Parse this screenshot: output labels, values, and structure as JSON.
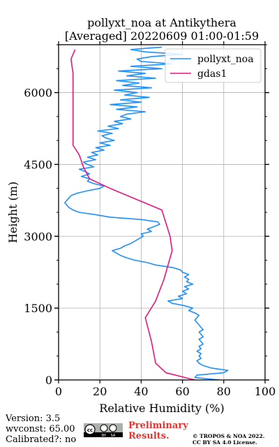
{
  "chart_data": {
    "type": "line",
    "title": [
      "pollyxt_noa at Antikythera",
      "[Averaged] 20220609 01:00-01:59"
    ],
    "xlabel": "Relative Humidity (%)",
    "ylabel": "Height (m)",
    "xlim": [
      0,
      100
    ],
    "ylim": [
      0,
      7000
    ],
    "xticks": [
      0,
      20,
      40,
      60,
      80,
      100
    ],
    "yticks": [
      0,
      1500,
      3000,
      4500,
      6000
    ],
    "grid": true,
    "legend_position": "top-right",
    "series": [
      {
        "name": "pollyxt_noa",
        "color": "#1e90ff",
        "points": [
          [
            78,
            0
          ],
          [
            66,
            50
          ],
          [
            67,
            100
          ],
          [
            80,
            150
          ],
          [
            82,
            200
          ],
          [
            74,
            250
          ],
          [
            70,
            300
          ],
          [
            68,
            350
          ],
          [
            67,
            400
          ],
          [
            69,
            450
          ],
          [
            68,
            500
          ],
          [
            69,
            550
          ],
          [
            67,
            600
          ],
          [
            69,
            650
          ],
          [
            68,
            700
          ],
          [
            70,
            750
          ],
          [
            69,
            800
          ],
          [
            68,
            850
          ],
          [
            70,
            900
          ],
          [
            69,
            950
          ],
          [
            68,
            1000
          ],
          [
            70,
            1050
          ],
          [
            69,
            1100
          ],
          [
            68,
            1150
          ],
          [
            67,
            1200
          ],
          [
            66,
            1250
          ],
          [
            67,
            1300
          ],
          [
            68,
            1350
          ],
          [
            66,
            1400
          ],
          [
            63,
            1450
          ],
          [
            65,
            1500
          ],
          [
            61,
            1550
          ],
          [
            55,
            1600
          ],
          [
            53,
            1650
          ],
          [
            60,
            1700
          ],
          [
            58,
            1750
          ],
          [
            62,
            1800
          ],
          [
            60,
            1850
          ],
          [
            63,
            1900
          ],
          [
            61,
            1950
          ],
          [
            65,
            2000
          ],
          [
            62,
            2050
          ],
          [
            63,
            2100
          ],
          [
            61,
            2150
          ],
          [
            63,
            2200
          ],
          [
            60,
            2250
          ],
          [
            59,
            2300
          ],
          [
            55,
            2350
          ],
          [
            47,
            2400
          ],
          [
            43,
            2450
          ],
          [
            37,
            2500
          ],
          [
            33,
            2550
          ],
          [
            30,
            2600
          ],
          [
            28,
            2650
          ],
          [
            26,
            2700
          ],
          [
            30,
            2750
          ],
          [
            32,
            2800
          ],
          [
            35,
            2850
          ],
          [
            37,
            2900
          ],
          [
            39,
            2950
          ],
          [
            41,
            3000
          ],
          [
            40,
            3050
          ],
          [
            45,
            3100
          ],
          [
            43,
            3150
          ],
          [
            46,
            3200
          ],
          [
            49,
            3250
          ],
          [
            48,
            3300
          ],
          [
            40,
            3350
          ],
          [
            25,
            3400
          ],
          [
            18,
            3450
          ],
          [
            10,
            3500
          ],
          [
            7,
            3550
          ],
          [
            5,
            3600
          ],
          [
            4,
            3650
          ],
          [
            3,
            3700
          ],
          [
            4,
            3750
          ],
          [
            5,
            3800
          ],
          [
            6,
            3850
          ],
          [
            9,
            3900
          ],
          [
            14,
            3950
          ],
          [
            20,
            4000
          ],
          [
            22,
            4050
          ],
          [
            17,
            4100
          ],
          [
            14,
            4150
          ],
          [
            15,
            4200
          ],
          [
            11,
            4250
          ],
          [
            15,
            4300
          ],
          [
            13,
            4350
          ],
          [
            10,
            4400
          ],
          [
            17,
            4450
          ],
          [
            14,
            4500
          ],
          [
            12,
            4550
          ],
          [
            18,
            4600
          ],
          [
            14,
            4650
          ],
          [
            19,
            4700
          ],
          [
            16,
            4750
          ],
          [
            22,
            4800
          ],
          [
            18,
            4850
          ],
          [
            25,
            4900
          ],
          [
            20,
            4950
          ],
          [
            27,
            5000
          ],
          [
            23,
            5050
          ],
          [
            21,
            5100
          ],
          [
            26,
            5150
          ],
          [
            19,
            5200
          ],
          [
            29,
            5250
          ],
          [
            24,
            5300
          ],
          [
            31,
            5350
          ],
          [
            27,
            5400
          ],
          [
            35,
            5450
          ],
          [
            30,
            5500
          ],
          [
            33,
            5550
          ],
          [
            42,
            5600
          ],
          [
            28,
            5650
          ],
          [
            38,
            5700
          ],
          [
            25,
            5750
          ],
          [
            40,
            5800
          ],
          [
            30,
            5850
          ],
          [
            44,
            5900
          ],
          [
            32,
            5950
          ],
          [
            38,
            6000
          ],
          [
            27,
            6050
          ],
          [
            45,
            6100
          ],
          [
            31,
            6150
          ],
          [
            39,
            6200
          ],
          [
            28,
            6250
          ],
          [
            47,
            6300
          ],
          [
            33,
            6350
          ],
          [
            42,
            6400
          ],
          [
            29,
            6450
          ],
          [
            50,
            6500
          ],
          [
            35,
            6550
          ],
          [
            55,
            6600
          ],
          [
            40,
            6650
          ],
          [
            38,
            6700
          ],
          [
            45,
            6750
          ],
          [
            60,
            6800
          ],
          [
            42,
            6850
          ],
          [
            35,
            6900
          ],
          [
            50,
            6950
          ]
        ]
      },
      {
        "name": "gdas1",
        "color": "#e8177f",
        "points": [
          [
            66,
            0
          ],
          [
            52,
            150
          ],
          [
            47,
            350
          ],
          [
            45,
            800
          ],
          [
            42,
            1300
          ],
          [
            47,
            1650
          ],
          [
            51,
            2100
          ],
          [
            55,
            2700
          ],
          [
            54,
            3000
          ],
          [
            50,
            3550
          ],
          [
            25,
            4000
          ],
          [
            15,
            4200
          ],
          [
            12,
            4450
          ],
          [
            10,
            4700
          ],
          [
            7,
            4900
          ],
          [
            7,
            5500
          ],
          [
            7,
            6000
          ],
          [
            7,
            6400
          ],
          [
            6,
            6700
          ],
          [
            8,
            6900
          ]
        ]
      }
    ]
  },
  "footer": {
    "version": "Version: 3.5",
    "wvconst": "wvconst:  65.00",
    "calibrated": "Calibrated?: no",
    "license_badge_icon": "cc-by-sa-icon",
    "prelim_line1": "Preliminary",
    "prelim_line2": "Results.",
    "copyright_line1": "© TROPOS & NOA 2022.",
    "copyright_line2": "CC BY SA 4.0 License."
  }
}
